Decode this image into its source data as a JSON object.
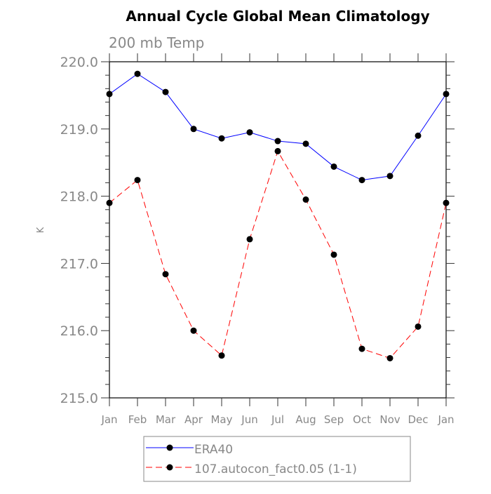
{
  "chart_data": {
    "type": "line",
    "title": "Annual Cycle Global Mean Climatology",
    "subtitle": "200 mb Temp",
    "xlabel": "",
    "ylabel": "K",
    "categories": [
      "Jan",
      "Feb",
      "Mar",
      "Apr",
      "May",
      "Jun",
      "Jul",
      "Aug",
      "Sep",
      "Oct",
      "Nov",
      "Dec",
      "Jan"
    ],
    "ylim": [
      215.0,
      220.0
    ],
    "yticks": [
      "215.0",
      "216.0",
      "217.0",
      "218.0",
      "219.0",
      "220.0"
    ],
    "grid": false,
    "legend_position": "bottom",
    "series": [
      {
        "name": "ERA40",
        "color": "#0000ff",
        "dash": "solid",
        "values": [
          219.52,
          219.82,
          219.55,
          219.0,
          218.86,
          218.95,
          218.82,
          218.78,
          218.44,
          218.24,
          218.3,
          218.9,
          219.52
        ]
      },
      {
        "name": "107.autocon_fact0.05 (1-1)",
        "color": "#ff0000",
        "dash": "dashed",
        "values": [
          217.9,
          218.24,
          216.84,
          216.0,
          215.63,
          217.36,
          218.67,
          217.95,
          217.13,
          215.73,
          215.59,
          216.06,
          217.9
        ]
      }
    ]
  }
}
